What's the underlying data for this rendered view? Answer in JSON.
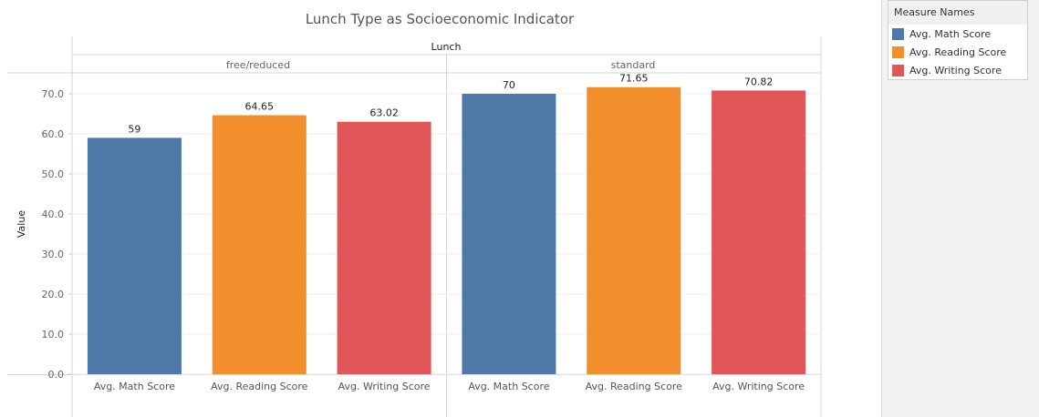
{
  "chart_data": {
    "type": "bar",
    "title": "Lunch Type as Socioeconomic Indicator",
    "column_header": "Lunch",
    "ylabel": "Value",
    "ylim": [
      0,
      75
    ],
    "yticks": [
      "0.0",
      "10.0",
      "20.0",
      "30.0",
      "40.0",
      "50.0",
      "60.0",
      "70.0"
    ],
    "grid": true,
    "legend_position": "top-right",
    "legend": {
      "title": "Measure Names",
      "items": [
        {
          "label": "Avg. Math Score",
          "color": "#4e79a7"
        },
        {
          "label": "Avg. Reading Score",
          "color": "#f28e2b"
        },
        {
          "label": "Avg. Writing Score",
          "color": "#e15759"
        }
      ]
    },
    "panes": [
      {
        "group": "free/reduced",
        "categories": [
          "Avg. Math Score",
          "Avg. Reading Score",
          "Avg. Writing Score"
        ],
        "values": [
          59,
          64.65,
          63.02
        ],
        "labels": [
          "59",
          "64.65",
          "63.02"
        ]
      },
      {
        "group": "standard",
        "categories": [
          "Avg. Math Score",
          "Avg. Reading Score",
          "Avg. Writing Score"
        ],
        "values": [
          70,
          71.65,
          70.82
        ],
        "labels": [
          "70",
          "71.65",
          "70.82"
        ]
      }
    ]
  }
}
